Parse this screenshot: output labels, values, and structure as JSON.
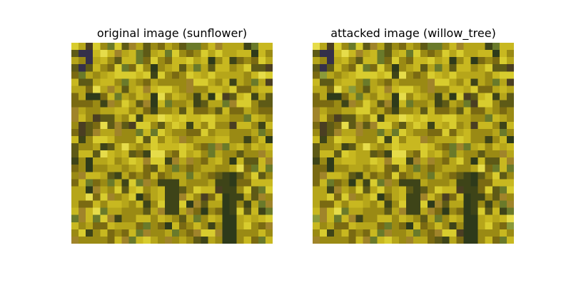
{
  "panels": [
    {
      "title": "original image (sunflower)",
      "image_label": "sunflower",
      "image_description": "low-resolution pixelated photo, dense yellow and olive-green foliage texture with dark green shadows"
    },
    {
      "title": "attacked image (willow_tree)",
      "image_label": "willow_tree",
      "image_description": "adversarially perturbed version of the same pixelated foliage image, visually near-identical"
    }
  ],
  "palette": [
    "#7a6a12",
    "#9a8a14",
    "#b6a61a",
    "#c8b820",
    "#d8cc2e",
    "#e6dc4a",
    "#5e5a16",
    "#3e4418",
    "#2e3a1a",
    "#6a7a2a",
    "#8a9a3a",
    "#a0842a",
    "#4a3e22",
    "#34304a"
  ]
}
